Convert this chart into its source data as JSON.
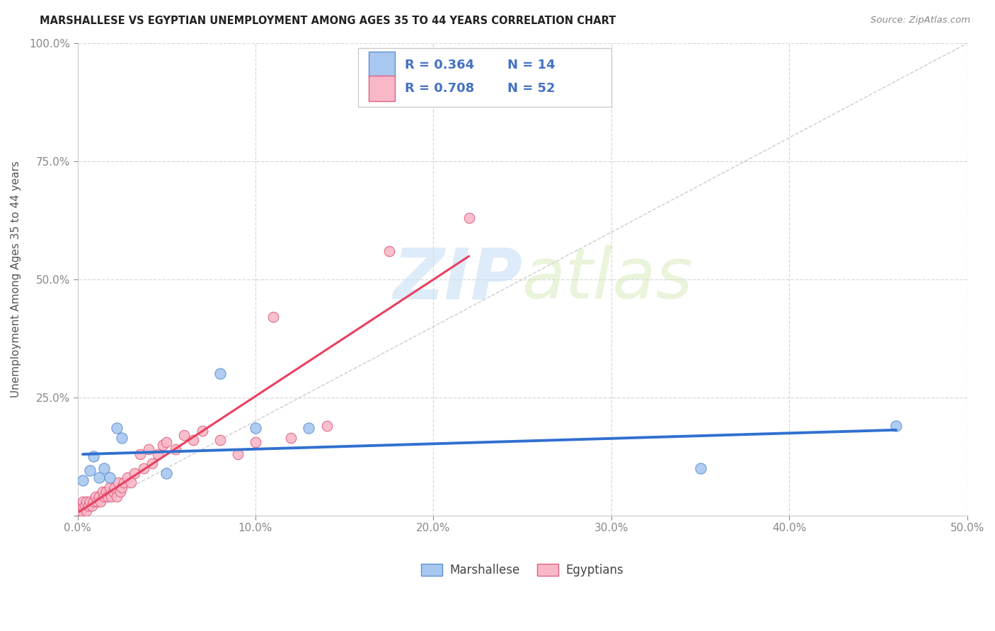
{
  "title": "MARSHALLESE VS EGYPTIAN UNEMPLOYMENT AMONG AGES 35 TO 44 YEARS CORRELATION CHART",
  "source": "Source: ZipAtlas.com",
  "ylabel": "Unemployment Among Ages 35 to 44 years",
  "xlim": [
    0.0,
    0.5
  ],
  "ylim": [
    0.0,
    1.0
  ],
  "xticks": [
    0.0,
    0.1,
    0.2,
    0.3,
    0.4,
    0.5
  ],
  "yticks": [
    0.0,
    0.25,
    0.5,
    0.75,
    1.0
  ],
  "xticklabels": [
    "0.0%",
    "10.0%",
    "20.0%",
    "30.0%",
    "40.0%",
    "50.0%"
  ],
  "yticklabels": [
    "",
    "25.0%",
    "50.0%",
    "75.0%",
    "100.0%"
  ],
  "marshallese_color": "#a8c8f0",
  "marshallese_edge": "#6090d0",
  "egyptian_color": "#f8b8c8",
  "egyptian_edge": "#e06080",
  "trend_blue": "#3070d0",
  "trend_pink": "#e84060",
  "ref_line_color": "#c0c0c0",
  "legend_R_blue": "R = 0.364",
  "legend_N_blue": "N = 14",
  "legend_R_pink": "R = 0.708",
  "legend_N_pink": "N = 52",
  "marshallese_x": [
    0.003,
    0.007,
    0.009,
    0.012,
    0.015,
    0.018,
    0.022,
    0.025,
    0.05,
    0.08,
    0.1,
    0.13,
    0.35,
    0.46
  ],
  "marshallese_y": [
    0.075,
    0.095,
    0.125,
    0.08,
    0.1,
    0.08,
    0.185,
    0.165,
    0.09,
    0.3,
    0.185,
    0.185,
    0.1,
    0.19
  ],
  "egyptian_x": [
    0.001,
    0.001,
    0.002,
    0.002,
    0.003,
    0.003,
    0.004,
    0.005,
    0.005,
    0.006,
    0.007,
    0.008,
    0.009,
    0.01,
    0.011,
    0.012,
    0.013,
    0.014,
    0.015,
    0.016,
    0.017,
    0.018,
    0.019,
    0.02,
    0.021,
    0.022,
    0.023,
    0.024,
    0.025,
    0.026,
    0.028,
    0.03,
    0.032,
    0.035,
    0.037,
    0.04,
    0.042,
    0.045,
    0.048,
    0.05,
    0.055,
    0.06,
    0.065,
    0.07,
    0.08,
    0.09,
    0.1,
    0.11,
    0.12,
    0.14,
    0.175,
    0.22
  ],
  "egyptian_y": [
    0.01,
    0.02,
    0.01,
    0.02,
    0.02,
    0.03,
    0.02,
    0.01,
    0.03,
    0.02,
    0.03,
    0.02,
    0.03,
    0.04,
    0.03,
    0.04,
    0.03,
    0.05,
    0.04,
    0.05,
    0.04,
    0.06,
    0.04,
    0.05,
    0.06,
    0.04,
    0.07,
    0.05,
    0.06,
    0.07,
    0.08,
    0.07,
    0.09,
    0.13,
    0.1,
    0.14,
    0.11,
    0.13,
    0.15,
    0.155,
    0.14,
    0.17,
    0.16,
    0.18,
    0.16,
    0.13,
    0.155,
    0.42,
    0.165,
    0.19,
    0.56,
    0.63
  ],
  "watermark_zip": "ZIP",
  "watermark_atlas": "atlas",
  "bg_color": "#ffffff",
  "grid_color": "#d8d8d8",
  "tick_color": "#4472c4",
  "label_color": "#555555",
  "title_color": "#222222",
  "source_color": "#888888"
}
